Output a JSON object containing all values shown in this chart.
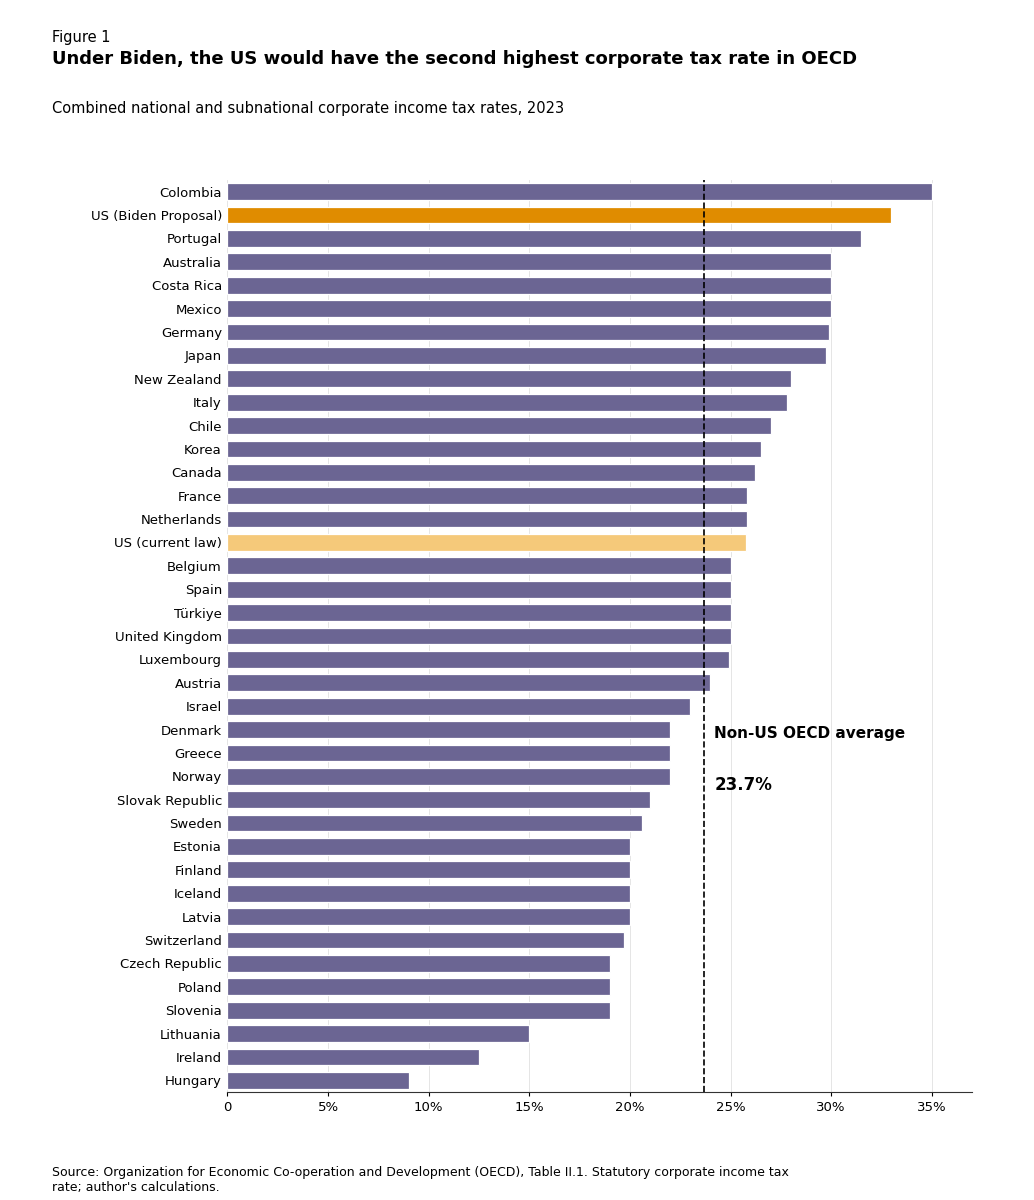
{
  "figure_label": "Figure 1",
  "title": "Under Biden, the US would have the second highest corporate tax rate in OECD",
  "subtitle": "Combined national and subnational corporate income tax rates, 2023",
  "source": "Source: Organization for Economic Co-operation and Development (OECD), Table II.1. Statutory corporate income tax\nrate; author's calculations.",
  "oecd_avg": 23.7,
  "oecd_avg_label_line1": "Non-US OECD average",
  "oecd_avg_label_line2": "23.7%",
  "countries": [
    "Colombia",
    "US (Biden Proposal)",
    "Portugal",
    "Australia",
    "Costa Rica",
    "Mexico",
    "Germany",
    "Japan",
    "New Zealand",
    "Italy",
    "Chile",
    "Korea",
    "Canada",
    "France",
    "Netherlands",
    "US (current law)",
    "Belgium",
    "Spain",
    "Türkiye",
    "United Kingdom",
    "Luxembourg",
    "Austria",
    "Israel",
    "Denmark",
    "Greece",
    "Norway",
    "Slovak Republic",
    "Sweden",
    "Estonia",
    "Finland",
    "Iceland",
    "Latvia",
    "Switzerland",
    "Czech Republic",
    "Poland",
    "Slovenia",
    "Lithuania",
    "Ireland",
    "Hungary"
  ],
  "values": [
    35.0,
    33.0,
    31.5,
    30.0,
    30.0,
    30.0,
    29.9,
    29.74,
    28.0,
    27.81,
    27.0,
    26.5,
    26.2,
    25.83,
    25.8,
    25.77,
    25.0,
    25.0,
    25.0,
    25.0,
    24.94,
    24.0,
    23.0,
    22.0,
    22.0,
    22.0,
    21.0,
    20.6,
    20.0,
    20.0,
    20.0,
    20.0,
    19.7,
    19.0,
    19.0,
    19.0,
    15.0,
    12.5,
    9.0
  ],
  "colors": {
    "default": "#6b6593",
    "biden": "#e08c00",
    "current": "#f5c97a"
  },
  "bar_color_map": {
    "US (Biden Proposal)": "#e08c00",
    "US (current law)": "#f5c97a"
  },
  "xlim": [
    0,
    37
  ],
  "xticks": [
    0,
    5,
    10,
    15,
    20,
    25,
    30,
    35
  ],
  "xtick_labels": [
    "0",
    "5%",
    "10%",
    "15%",
    "20%",
    "25%",
    "30%",
    "35%"
  ]
}
